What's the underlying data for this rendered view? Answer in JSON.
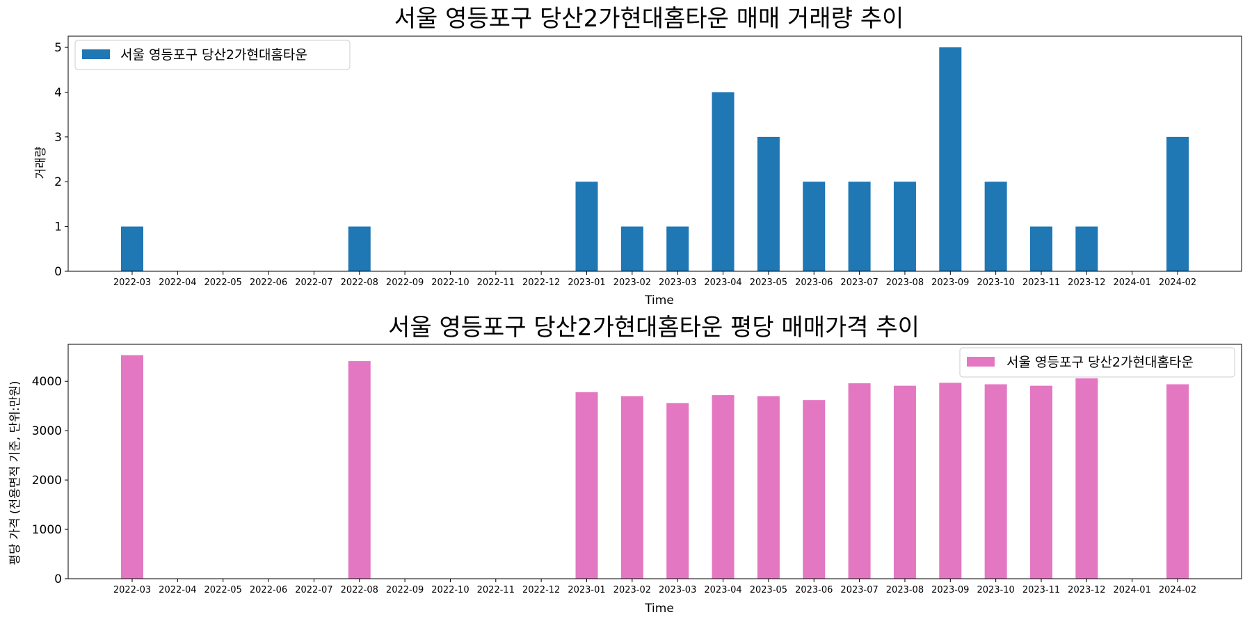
{
  "chart_data": [
    {
      "type": "bar",
      "title": "서울 영등포구 당산2가현대홈타운 매매 거래량 추이",
      "xlabel": "Time",
      "ylabel": "거래량",
      "categories": [
        "2022-03",
        "2022-04",
        "2022-05",
        "2022-06",
        "2022-07",
        "2022-08",
        "2022-09",
        "2022-10",
        "2022-11",
        "2022-12",
        "2023-01",
        "2023-02",
        "2023-03",
        "2023-04",
        "2023-05",
        "2023-06",
        "2023-07",
        "2023-08",
        "2023-09",
        "2023-10",
        "2023-11",
        "2023-12",
        "2024-01",
        "2024-02"
      ],
      "series": [
        {
          "name": "서울 영등포구 당산2가현대홈타운",
          "color": "#1f77b4",
          "values": [
            1,
            0,
            0,
            0,
            0,
            1,
            0,
            0,
            0,
            0,
            2,
            1,
            1,
            4,
            3,
            2,
            2,
            2,
            5,
            2,
            1,
            1,
            0,
            3
          ]
        }
      ],
      "ylim": [
        0,
        5.25
      ],
      "yticks": [
        0,
        1,
        2,
        3,
        4,
        5
      ],
      "legend": "upper-left",
      "grid": false
    },
    {
      "type": "bar",
      "title": "서울 영등포구 당산2가현대홈타운 평당 매매가격 추이",
      "xlabel": "Time",
      "ylabel": "평당 가격 (전용면적 기준, 단위:만원)",
      "categories": [
        "2022-03",
        "2022-04",
        "2022-05",
        "2022-06",
        "2022-07",
        "2022-08",
        "2022-09",
        "2022-10",
        "2022-11",
        "2022-12",
        "2023-01",
        "2023-02",
        "2023-03",
        "2023-04",
        "2023-05",
        "2023-06",
        "2023-07",
        "2023-08",
        "2023-09",
        "2023-10",
        "2023-11",
        "2023-12",
        "2024-01",
        "2024-02"
      ],
      "series": [
        {
          "name": "서울 영등포구 당산2가현대홈타운",
          "color": "#e377c2",
          "values": [
            4530,
            0,
            0,
            0,
            0,
            4410,
            0,
            0,
            0,
            0,
            3780,
            3700,
            3560,
            3720,
            3700,
            3620,
            3960,
            3910,
            3970,
            3940,
            3910,
            4060,
            0,
            3940
          ]
        }
      ],
      "ylim": [
        0,
        4750
      ],
      "yticks": [
        0,
        1000,
        2000,
        3000,
        4000
      ],
      "legend": "upper-right",
      "grid": false
    }
  ]
}
